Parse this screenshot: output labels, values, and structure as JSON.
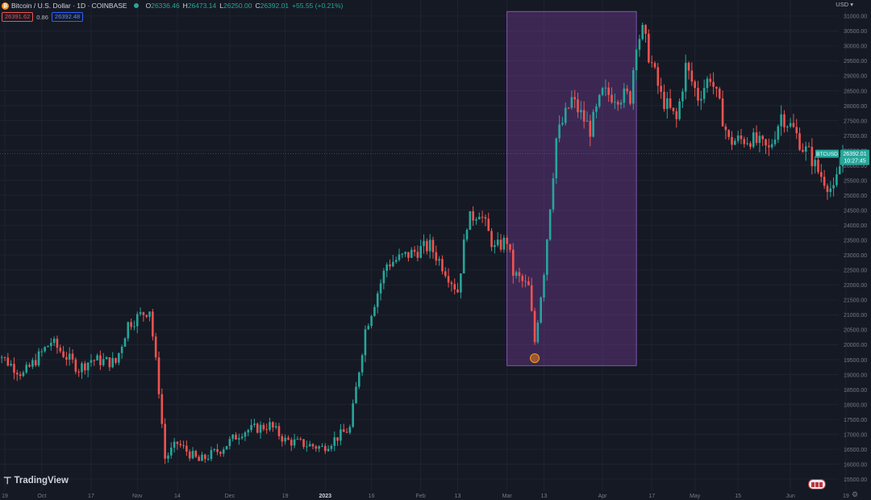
{
  "header": {
    "symbol_title": "Bitcoin / U.S. Dollar · 1D · COINBASE",
    "open_key": "O",
    "open": "26336.46",
    "high_key": "H",
    "high": "26473.14",
    "low_key": "L",
    "low": "26250.00",
    "close_key": "C",
    "close": "26392.01",
    "change": "+55.55 (+0.21%)",
    "bid": "26391.62",
    "spread": "0.86",
    "ask": "26392.48",
    "currency": "USD"
  },
  "branding": {
    "logo_mark": "⊤",
    "logo_text": "TradingView"
  },
  "colors": {
    "background": "#151924",
    "up": "#26a69a",
    "down": "#ef5350",
    "highlight_rect": "#7b3fa0",
    "grid": "#1f2331",
    "axis_text": "#787b86",
    "price_tag": "#26a69a"
  },
  "chart_data": {
    "type": "candlestick",
    "symbol": "BTCUSD",
    "interval": "1D",
    "ylim": [
      15100,
      31400
    ],
    "y_ticks": [
      15500,
      16000,
      16500,
      17000,
      17500,
      18000,
      18500,
      19000,
      19500,
      20000,
      20500,
      21000,
      21500,
      22000,
      22500,
      23000,
      23500,
      24000,
      24500,
      25000,
      25500,
      26000,
      26500,
      27000,
      27500,
      28000,
      28500,
      29000,
      29500,
      30000,
      30500,
      31000
    ],
    "x_ticks": [
      "19",
      "Oct",
      "17",
      "Nov",
      "14",
      "Dec",
      "19",
      "2023",
      "16",
      "Feb",
      "13",
      "Mar",
      "13",
      "Apr",
      "17",
      "May",
      "15",
      "Jun",
      "19"
    ],
    "x_tick_bold": [
      "2023"
    ],
    "current_price_tag": {
      "label": "BTCUSD",
      "price": "26392.01",
      "countdown": "10:27:45",
      "value": 26392.01
    },
    "highlight_region": {
      "from_date": "2023-03-01",
      "to_date": "2023-04-12",
      "price_low": 19300,
      "price_high": 31150,
      "marker_price": 19550
    },
    "anchors": [
      {
        "date": "2022-09-15",
        "price": 20000
      },
      {
        "date": "2022-09-19",
        "price": 19500
      },
      {
        "date": "2022-09-25",
        "price": 19000
      },
      {
        "date": "2022-10-04",
        "price": 20100
      },
      {
        "date": "2022-10-13",
        "price": 19200
      },
      {
        "date": "2022-10-17",
        "price": 19500
      },
      {
        "date": "2022-10-25",
        "price": 19400
      },
      {
        "date": "2022-10-29",
        "price": 20700
      },
      {
        "date": "2022-11-05",
        "price": 21200
      },
      {
        "date": "2022-11-08",
        "price": 18500
      },
      {
        "date": "2022-11-10",
        "price": 16200
      },
      {
        "date": "2022-11-14",
        "price": 16700
      },
      {
        "date": "2022-11-21",
        "price": 16100
      },
      {
        "date": "2022-11-28",
        "price": 16500
      },
      {
        "date": "2022-12-05",
        "price": 17100
      },
      {
        "date": "2022-12-14",
        "price": 17300
      },
      {
        "date": "2022-12-19",
        "price": 16800
      },
      {
        "date": "2022-12-31",
        "price": 16550
      },
      {
        "date": "2023-01-09",
        "price": 17200
      },
      {
        "date": "2023-01-14",
        "price": 20500
      },
      {
        "date": "2023-01-21",
        "price": 22700
      },
      {
        "date": "2023-02-01",
        "price": 23200
      },
      {
        "date": "2023-02-04",
        "price": 23300
      },
      {
        "date": "2023-02-09",
        "price": 22500
      },
      {
        "date": "2023-02-13",
        "price": 21800
      },
      {
        "date": "2023-02-16",
        "price": 24100
      },
      {
        "date": "2023-02-20",
        "price": 24500
      },
      {
        "date": "2023-02-25",
        "price": 23200
      },
      {
        "date": "2023-03-01",
        "price": 23500
      },
      {
        "date": "2023-03-03",
        "price": 22400
      },
      {
        "date": "2023-03-08",
        "price": 21900
      },
      {
        "date": "2023-03-10",
        "price": 20100
      },
      {
        "date": "2023-03-13",
        "price": 22500
      },
      {
        "date": "2023-03-17",
        "price": 26900
      },
      {
        "date": "2023-03-22",
        "price": 28200
      },
      {
        "date": "2023-03-28",
        "price": 27200
      },
      {
        "date": "2023-04-01",
        "price": 28400
      },
      {
        "date": "2023-04-10",
        "price": 28300
      },
      {
        "date": "2023-04-12",
        "price": 30200
      },
      {
        "date": "2023-04-14",
        "price": 30450
      },
      {
        "date": "2023-04-20",
        "price": 28300
      },
      {
        "date": "2023-04-25",
        "price": 27500
      },
      {
        "date": "2023-04-28",
        "price": 29300
      },
      {
        "date": "2023-05-02",
        "price": 28300
      },
      {
        "date": "2023-05-06",
        "price": 29000
      },
      {
        "date": "2023-05-10",
        "price": 27600
      },
      {
        "date": "2023-05-12",
        "price": 26800
      },
      {
        "date": "2023-05-19",
        "price": 26900
      },
      {
        "date": "2023-05-25",
        "price": 26500
      },
      {
        "date": "2023-05-29",
        "price": 27700
      },
      {
        "date": "2023-06-02",
        "price": 27200
      },
      {
        "date": "2023-06-05",
        "price": 26600
      },
      {
        "date": "2023-06-07",
        "price": 26400
      },
      {
        "date": "2023-06-10",
        "price": 25800
      },
      {
        "date": "2023-06-15",
        "price": 25100
      },
      {
        "date": "2023-06-18",
        "price": 26392
      }
    ]
  }
}
